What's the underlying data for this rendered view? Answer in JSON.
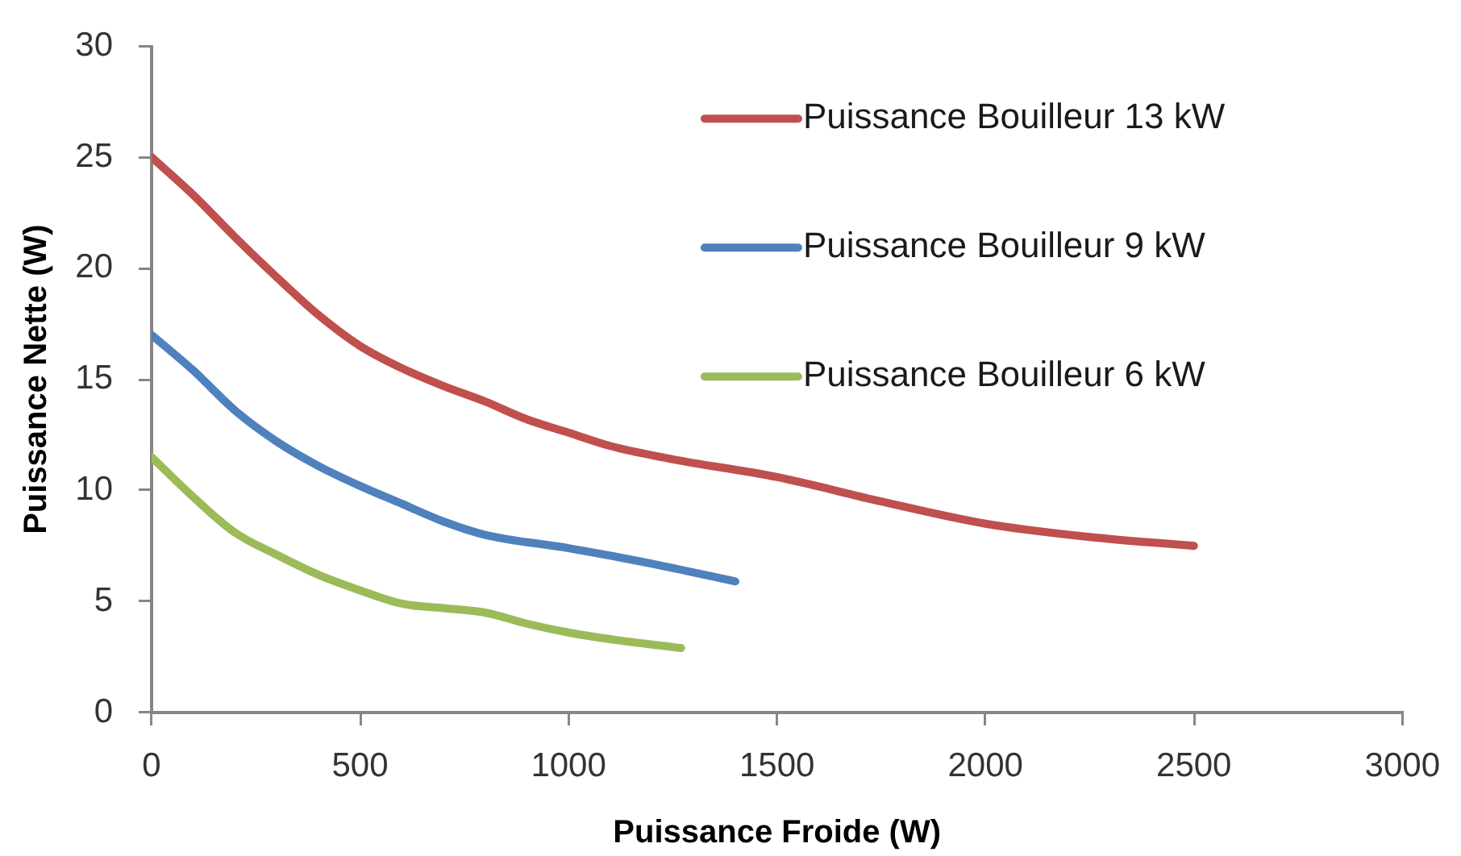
{
  "chart_data": {
    "type": "line",
    "xlabel": "Puissance Froide (W)",
    "ylabel": "Puissance Nette (W)",
    "xlim": [
      0,
      3000
    ],
    "xticks": [
      0,
      500,
      1000,
      1500,
      2000,
      2500,
      3000
    ],
    "ylim": [
      0,
      30
    ],
    "yticks": [
      0,
      5,
      10,
      15,
      20,
      25,
      30
    ],
    "grid": false,
    "legend": "top right",
    "marker": "none",
    "line_style": "solid",
    "series": [
      {
        "name": "Puissance Bouilleur 13 kW",
        "color": "#c0504d",
        "x": [
          0,
          100,
          200,
          300,
          400,
          500,
          600,
          700,
          800,
          900,
          1000,
          1100,
          1250,
          1500,
          1750,
          2000,
          2250,
          2500
        ],
        "values": [
          25,
          23.3,
          21.4,
          19.6,
          17.9,
          16.5,
          15.5,
          14.7,
          14.0,
          13.2,
          12.6,
          12.0,
          11.4,
          10.6,
          9.5,
          8.5,
          7.9,
          7.5
        ]
      },
      {
        "name": "Puissance Bouilleur 9 kW",
        "color": "#4f81bd",
        "x": [
          0,
          100,
          200,
          300,
          400,
          500,
          600,
          700,
          800,
          1000,
          1200,
          1400
        ],
        "values": [
          17,
          15.4,
          13.6,
          12.2,
          11.1,
          10.2,
          9.4,
          8.6,
          8.0,
          7.4,
          6.7,
          5.9
        ]
      },
      {
        "name": "Puissance Bouilleur 6 kW",
        "color": "#9bbb59",
        "x": [
          0,
          100,
          200,
          300,
          400,
          500,
          600,
          700,
          800,
          900,
          1000,
          1100,
          1270
        ],
        "values": [
          11.5,
          9.7,
          8.1,
          7.1,
          6.2,
          5.5,
          4.9,
          4.7,
          4.5,
          4.0,
          3.6,
          3.3,
          2.9
        ]
      }
    ]
  }
}
